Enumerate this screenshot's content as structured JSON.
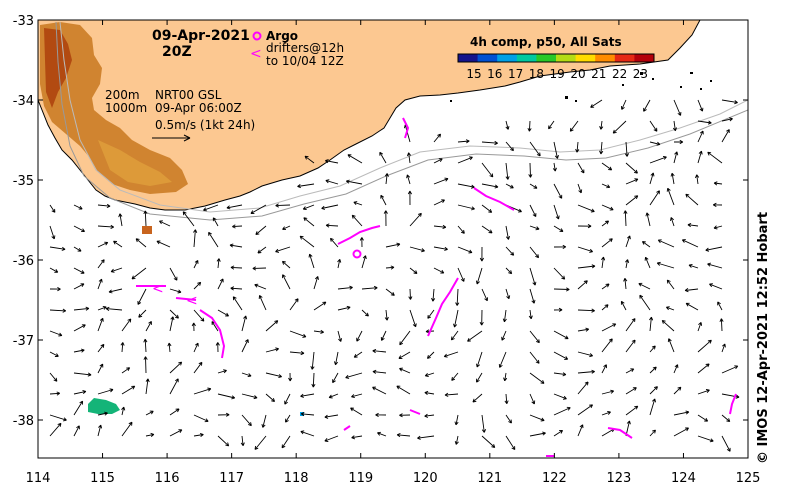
{
  "header": {
    "date": "09-Apr-2021",
    "time": "20Z"
  },
  "legend_argo": {
    "argo_label": "Argo",
    "drifters_label": "drifters@12h",
    "drifters_until": "to 10/04 12Z"
  },
  "sst_legend": {
    "title": "4h comp, p50, All Sats",
    "ticks": [
      "15",
      "16",
      "17",
      "18",
      "19",
      "20",
      "21",
      "22",
      "23"
    ],
    "colors": [
      "#14148c",
      "#0050d2",
      "#00a0e6",
      "#00c8a0",
      "#28c828",
      "#b4dc14",
      "#ffdc00",
      "#ff8c00",
      "#e62814",
      "#b4000a"
    ]
  },
  "current_info": {
    "line1": "NRT00 GSL",
    "line2": "09-Apr 06:00Z",
    "line3": "0.5m/s (1kt 24h)"
  },
  "isobaths": {
    "a": "200m",
    "b": "1000m"
  },
  "axes": {
    "x_ticks": [
      "114",
      "115",
      "116",
      "117",
      "118",
      "119",
      "120",
      "121",
      "122",
      "123",
      "124",
      "125"
    ],
    "y_ticks": [
      "-33",
      "-34",
      "-35",
      "-36",
      "-37",
      "-38"
    ]
  },
  "credit": "© IMOS 12-Apr-2021 12:52 Hobart",
  "colors": {
    "land": "#fcc891",
    "coast": "#000000",
    "drifter": "#ff00ff",
    "warm_sst": "#c86414",
    "cool_sst": "#14b478"
  }
}
